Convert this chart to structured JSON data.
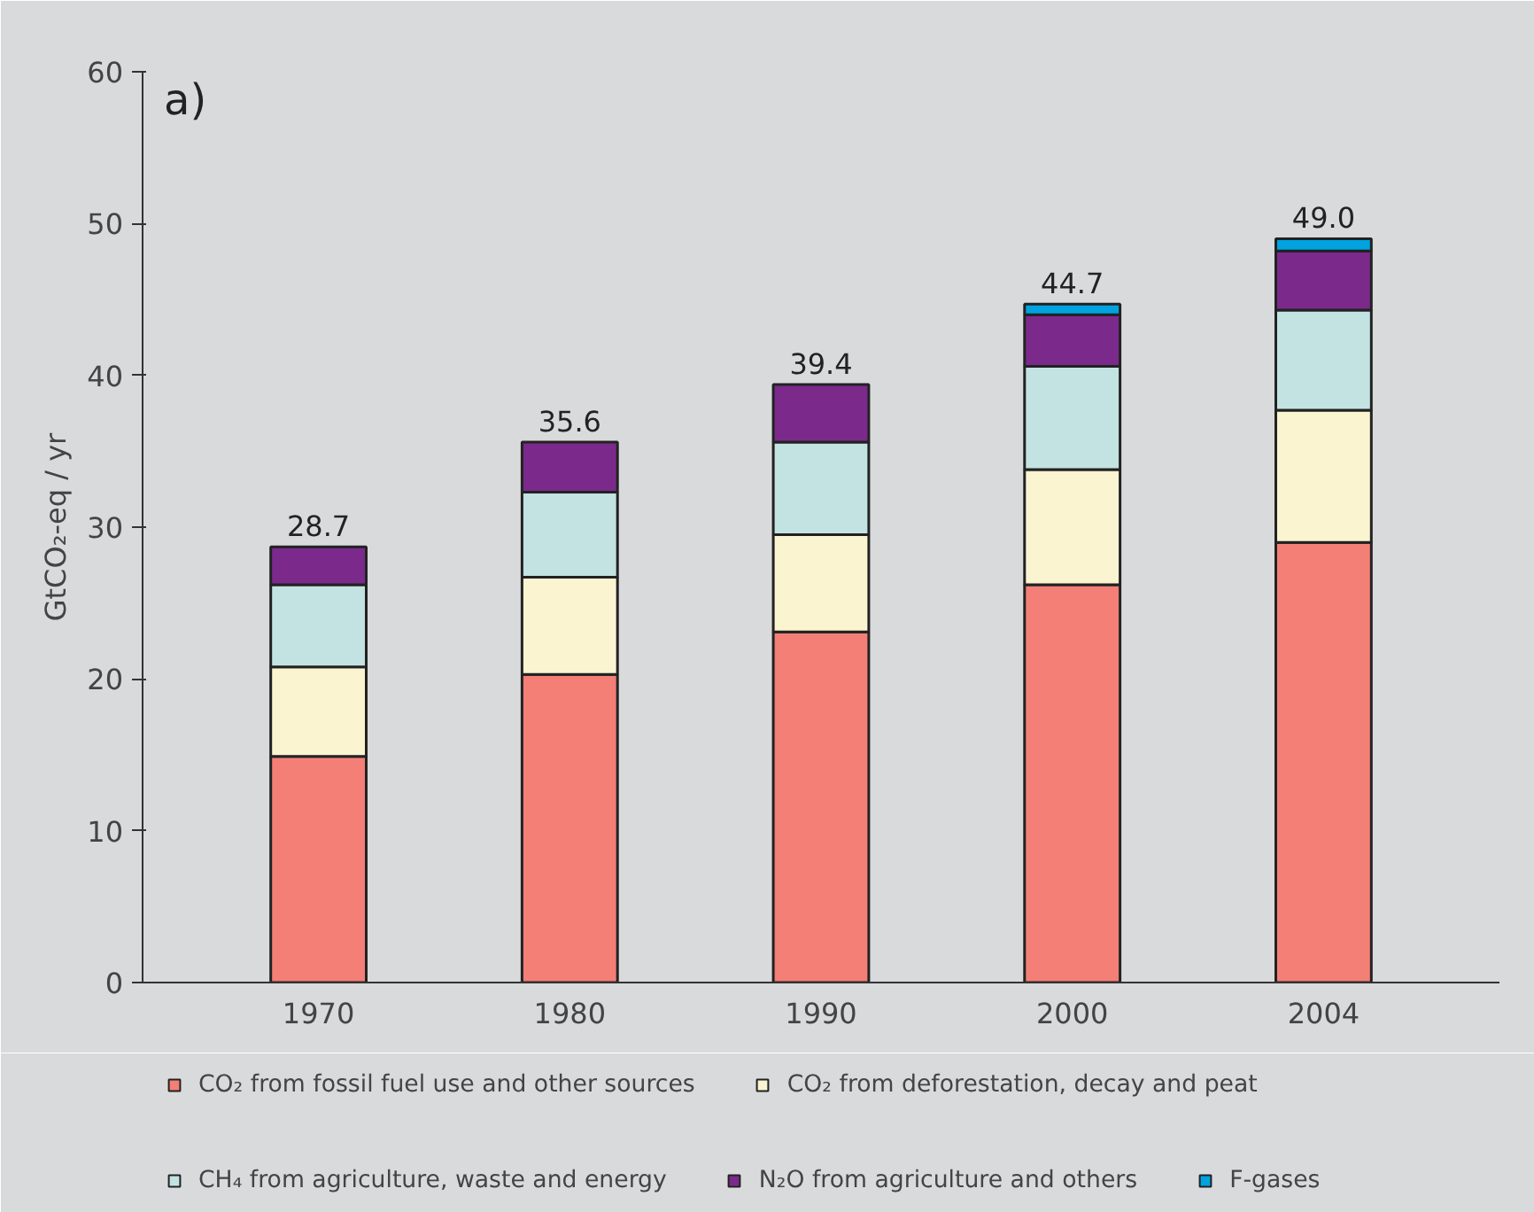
{
  "chart_data": {
    "type": "bar",
    "stacked": true,
    "categories": [
      "1970",
      "1980",
      "1990",
      "2000",
      "2004"
    ],
    "ylabel": "GtCO₂-eq / yr",
    "annotations": [
      "a)"
    ],
    "series": [
      {
        "name": "CO₂ from fossil fuel use and other sources",
        "color": "#f47f76",
        "values": [
          14.9,
          20.3,
          23.1,
          26.2,
          29.0
        ]
      },
      {
        "name": "CO₂ from deforestation, decay and peat",
        "color": "#faf4d0",
        "values": [
          5.9,
          6.4,
          6.4,
          7.6,
          8.7
        ]
      },
      {
        "name": "CH₄ from agriculture, waste and energy",
        "color": "#c3e3e2",
        "values": [
          5.4,
          5.6,
          6.1,
          6.8,
          6.6
        ]
      },
      {
        "name": "N₂O from agriculture and others",
        "color": "#7b2a8c",
        "values": [
          2.5,
          3.3,
          3.8,
          3.4,
          3.9
        ]
      },
      {
        "name": "F-gases",
        "color": "#00a3e0",
        "values": [
          null,
          null,
          null,
          0.7,
          0.8
        ]
      }
    ],
    "totals": [
      "28.7",
      "35.6",
      "39.4",
      "44.7",
      "49.0"
    ],
    "ylim": [
      0,
      60
    ],
    "yticks": [
      0,
      10,
      20,
      30,
      40,
      50,
      60
    ],
    "grid": false,
    "legend": "bottom"
  }
}
